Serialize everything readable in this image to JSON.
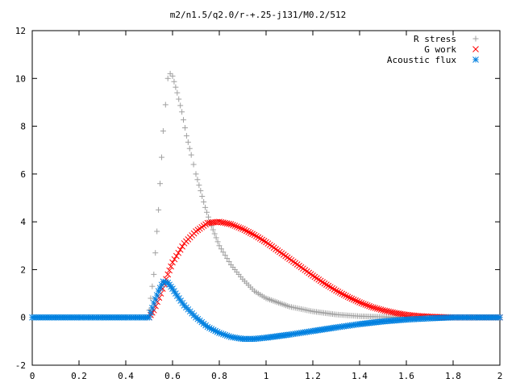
{
  "chart_data": {
    "type": "scatter",
    "title": "m2/n1.5/q2.0/r-+.25-j131/M0.2/512",
    "xlabel": "",
    "ylabel": "",
    "xlim": [
      0,
      2
    ],
    "ylim": [
      -2,
      12
    ],
    "xticks": [
      0,
      0.2,
      0.4,
      0.6,
      0.8,
      1,
      1.2,
      1.4,
      1.6,
      1.8,
      2
    ],
    "xtick_labels": [
      "0",
      "0.2",
      "0.4",
      "0.6",
      "0.8",
      "1",
      "1.2",
      "1.4",
      "1.6",
      "1.8",
      "2"
    ],
    "yticks": [
      -2,
      0,
      2,
      4,
      6,
      8,
      10,
      12
    ],
    "ytick_labels": [
      "-2",
      "0",
      "2",
      "4",
      "6",
      "8",
      "10",
      "12"
    ],
    "grid": false,
    "legend_position": "top-right",
    "series": [
      {
        "name": "R stress",
        "marker": "plus",
        "color": "#a0a0a0",
        "points": [
          [
            0.5,
            0.3
          ],
          [
            0.52,
            1.8
          ],
          [
            0.54,
            4.5
          ],
          [
            0.56,
            7.8
          ],
          [
            0.58,
            10.0
          ],
          [
            0.59,
            10.2
          ],
          [
            0.6,
            10.1
          ],
          [
            0.62,
            9.4
          ],
          [
            0.64,
            8.6
          ],
          [
            0.66,
            7.6
          ],
          [
            0.68,
            6.8
          ],
          [
            0.7,
            6.0
          ],
          [
            0.72,
            5.3
          ],
          [
            0.74,
            4.6
          ],
          [
            0.76,
            4.0
          ],
          [
            0.78,
            3.5
          ],
          [
            0.8,
            3.0
          ],
          [
            0.85,
            2.2
          ],
          [
            0.9,
            1.6
          ],
          [
            0.95,
            1.1
          ],
          [
            1.0,
            0.8
          ],
          [
            1.1,
            0.45
          ],
          [
            1.2,
            0.25
          ],
          [
            1.3,
            0.12
          ],
          [
            1.4,
            0.05
          ],
          [
            1.5,
            0.02
          ],
          [
            1.6,
            0.0
          ],
          [
            1.7,
            0.0
          ],
          [
            1.8,
            0.0
          ],
          [
            1.9,
            0.0
          ],
          [
            2.0,
            0.0
          ]
        ]
      },
      {
        "name": "G work",
        "marker": "cross",
        "color": "#ff0000",
        "points": [
          [
            0.5,
            0.0
          ],
          [
            0.52,
            0.3
          ],
          [
            0.55,
            1.0
          ],
          [
            0.58,
            1.8
          ],
          [
            0.6,
            2.3
          ],
          [
            0.65,
            3.1
          ],
          [
            0.7,
            3.6
          ],
          [
            0.75,
            3.95
          ],
          [
            0.8,
            4.0
          ],
          [
            0.85,
            3.9
          ],
          [
            0.9,
            3.7
          ],
          [
            0.95,
            3.45
          ],
          [
            1.0,
            3.15
          ],
          [
            1.05,
            2.8
          ],
          [
            1.1,
            2.45
          ],
          [
            1.15,
            2.1
          ],
          [
            1.2,
            1.75
          ],
          [
            1.25,
            1.42
          ],
          [
            1.3,
            1.12
          ],
          [
            1.35,
            0.86
          ],
          [
            1.4,
            0.63
          ],
          [
            1.45,
            0.44
          ],
          [
            1.5,
            0.3
          ],
          [
            1.55,
            0.19
          ],
          [
            1.6,
            0.11
          ],
          [
            1.65,
            0.06
          ],
          [
            1.7,
            0.03
          ],
          [
            1.8,
            0.0
          ],
          [
            1.9,
            0.0
          ],
          [
            2.0,
            0.0
          ]
        ]
      },
      {
        "name": "Acoustic flux",
        "marker": "star",
        "color": "#0080e0",
        "points": [
          [
            0.0,
            0.0
          ],
          [
            0.1,
            0.0
          ],
          [
            0.2,
            0.0
          ],
          [
            0.3,
            0.0
          ],
          [
            0.4,
            0.0
          ],
          [
            0.5,
            0.0
          ],
          [
            0.52,
            0.6
          ],
          [
            0.54,
            1.1
          ],
          [
            0.56,
            1.5
          ],
          [
            0.58,
            1.45
          ],
          [
            0.6,
            1.2
          ],
          [
            0.62,
            0.9
          ],
          [
            0.65,
            0.5
          ],
          [
            0.7,
            0.0
          ],
          [
            0.75,
            -0.4
          ],
          [
            0.8,
            -0.65
          ],
          [
            0.85,
            -0.82
          ],
          [
            0.9,
            -0.9
          ],
          [
            0.95,
            -0.9
          ],
          [
            1.0,
            -0.85
          ],
          [
            1.1,
            -0.72
          ],
          [
            1.2,
            -0.57
          ],
          [
            1.3,
            -0.42
          ],
          [
            1.4,
            -0.28
          ],
          [
            1.5,
            -0.17
          ],
          [
            1.6,
            -0.09
          ],
          [
            1.7,
            -0.04
          ],
          [
            1.8,
            0.0
          ],
          [
            1.9,
            0.0
          ],
          [
            2.0,
            0.0
          ]
        ]
      }
    ]
  }
}
